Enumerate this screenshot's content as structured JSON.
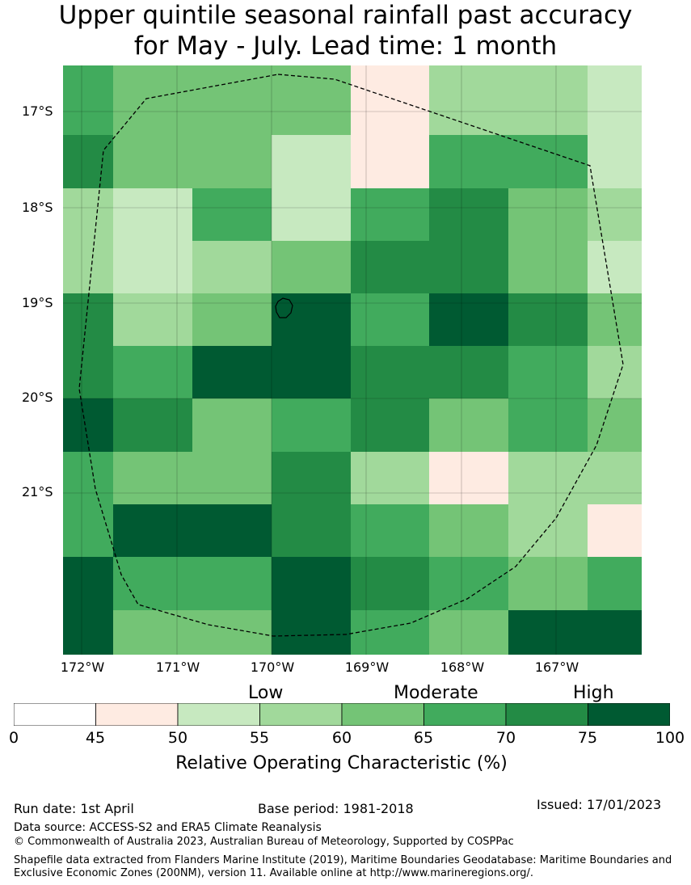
{
  "title": {
    "line1": "Upper quintile seasonal rainfall past accuracy",
    "line2": "for May - July. Lead time: 1 month"
  },
  "map": {
    "lat_labels": [
      "17°S",
      "18°S",
      "19°S",
      "20°S",
      "21°S"
    ],
    "lon_labels": [
      "172°W",
      "171°W",
      "170°W",
      "169°W",
      "168°W",
      "167°W"
    ]
  },
  "legend": {
    "categories": [
      "Low",
      "Moderate",
      "High"
    ],
    "ticks": [
      "0",
      "45",
      "50",
      "55",
      "60",
      "65",
      "70",
      "75",
      "100"
    ],
    "colors": [
      "#ffffff",
      "#feebe2",
      "#c7e9c0",
      "#a1d99b",
      "#74c476",
      "#41ab5d",
      "#238b45",
      "#005a32"
    ],
    "title": "Relative Operating Characteristic (%)"
  },
  "footer": {
    "run_date": "Run date: 1st April",
    "base_period": "Base period: 1981-2018",
    "issued": "Issued: 17/01/2023",
    "data_source": "Data source: ACCESS-S2 and ERA5 Climate Reanalysis",
    "copyright": "© Commonwealth of Australia 2023, Australian Bureau of Meteorology, Supported by COSPPac",
    "shapefile": "Shapefile data extracted from Flanders Marine Institute (2019), Maritime Boundaries Geodatabase: Maritime Boundaries and Exclusive Economic Zones (200NM), version 11. Available online at http://www.marineregions.org/."
  }
}
